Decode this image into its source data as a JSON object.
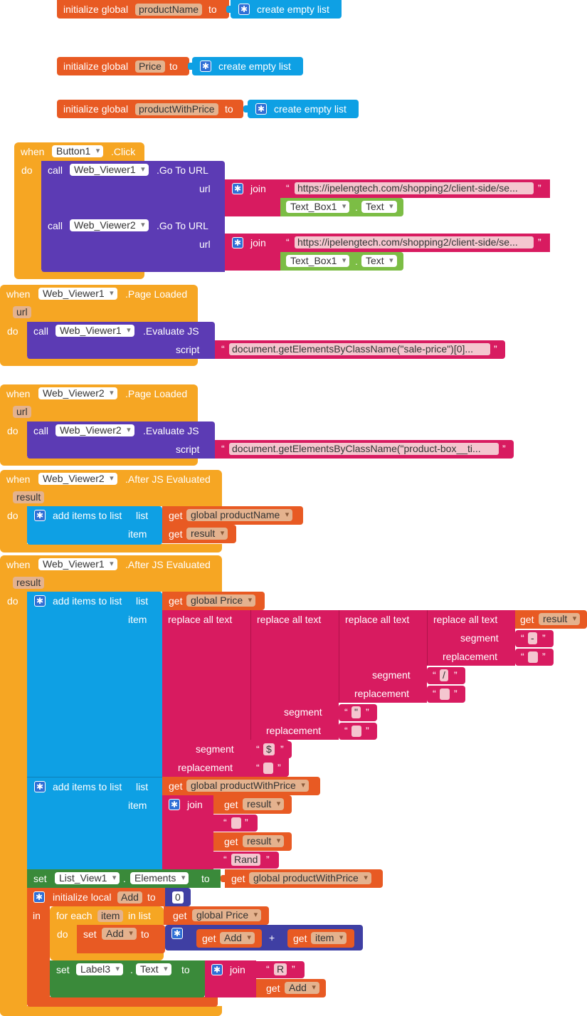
{
  "globals": [
    {
      "prefix": "initialize global",
      "name": "productName",
      "to": "to",
      "value": "create empty list"
    },
    {
      "prefix": "initialize global",
      "name": "Price",
      "to": "to",
      "value": "create empty list"
    },
    {
      "prefix": "initialize global",
      "name": "productWithPrice",
      "to": "to",
      "value": "create empty list"
    }
  ],
  "event_button": {
    "when": "when",
    "component": "Button1",
    "event": ".Click",
    "do": "do",
    "calls": [
      {
        "call": "call",
        "component": "Web_Viewer1",
        "method": ".Go To URL",
        "arg": "url",
        "join": "join",
        "url_text": "https://ipelengtech.com/shopping2/client-side/se...",
        "prop_component": "Text_Box1",
        "dot": ".",
        "prop": "Text"
      },
      {
        "call": "call",
        "component": "Web_Viewer2",
        "method": ".Go To URL",
        "arg": "url",
        "join": "join",
        "url_text": "https://ipelengtech.com/shopping2/client-side/se...",
        "prop_component": "Text_Box1",
        "dot": ".",
        "prop": "Text"
      }
    ]
  },
  "event_page1": {
    "when": "when",
    "component": "Web_Viewer1",
    "event": ".Page Loaded",
    "param": "url",
    "do": "do",
    "call": "call",
    "call_component": "Web_Viewer1",
    "method": ".Evaluate JS",
    "arg": "script",
    "script_text": "document.getElementsByClassName(\"sale-price\")[0]..."
  },
  "event_page2": {
    "when": "when",
    "component": "Web_Viewer2",
    "event": ".Page Loaded",
    "param": "url",
    "do": "do",
    "call": "call",
    "call_component": "Web_Viewer2",
    "method": ".Evaluate JS",
    "arg": "script",
    "script_text": "document.getElementsByClassName(\"product-box__ti..."
  },
  "event_js2": {
    "when": "when",
    "component": "Web_Viewer2",
    "event": ".After JS Evaluated",
    "param": "result",
    "do": "do",
    "add": "add items to list",
    "list": "list",
    "item": "item",
    "get": "get",
    "list_var": "global productName",
    "item_var": "result"
  },
  "event_js1": {
    "when": "when",
    "component": "Web_Viewer1",
    "event": ".After JS Evaluated",
    "param": "result",
    "do": "do",
    "add1": {
      "label": "add items to list",
      "list": "list",
      "item": "item",
      "get": "get",
      "list_var": "global Price"
    },
    "replace": {
      "label": "replace all text",
      "segment": "segment",
      "replacement": "replacement",
      "get": "get",
      "var": "result",
      "seg1": "-",
      "seg2": "/",
      "seg3": "\"",
      "seg4": "$"
    },
    "add2": {
      "label": "add items to list",
      "list": "list",
      "item": "item",
      "get": "get",
      "list_var": "global productWithPrice",
      "join": "join",
      "var1": "result",
      "var2": "result",
      "text_rand": "Rand"
    },
    "set_list": {
      "set": "set",
      "component": "List_View1",
      "dot": ".",
      "prop": "Elements",
      "to": "to",
      "get": "get",
      "var": "global productWithPrice"
    },
    "local": {
      "label": "initialize local",
      "name": "Add",
      "to": "to",
      "value": "0",
      "in": "in"
    },
    "foreach": {
      "label": "for each",
      "var": "item",
      "in_list": "in list",
      "get": "get",
      "list_var": "global Price",
      "do": "do"
    },
    "set_add": {
      "set": "set",
      "var": "Add",
      "to": "to",
      "get": "get",
      "a": "Add",
      "op": "+",
      "b": "item"
    },
    "set_label": {
      "set": "set",
      "component": "Label3",
      "dot": ".",
      "prop": "Text",
      "to": "to",
      "join": "join",
      "text_r": "R",
      "get": "get",
      "var": "Add"
    }
  },
  "colors": {
    "init": "#e85a23",
    "control": "#f6a623",
    "component": "#5c3bb4",
    "list": "#0ea0e4",
    "text": "#d81b60",
    "property": "#7cbd45",
    "setter": "#3a8a3a",
    "math": "#3f3fa3"
  },
  "icons": {
    "mutator": "gear-icon",
    "dropdown": "chevron-down-icon"
  }
}
